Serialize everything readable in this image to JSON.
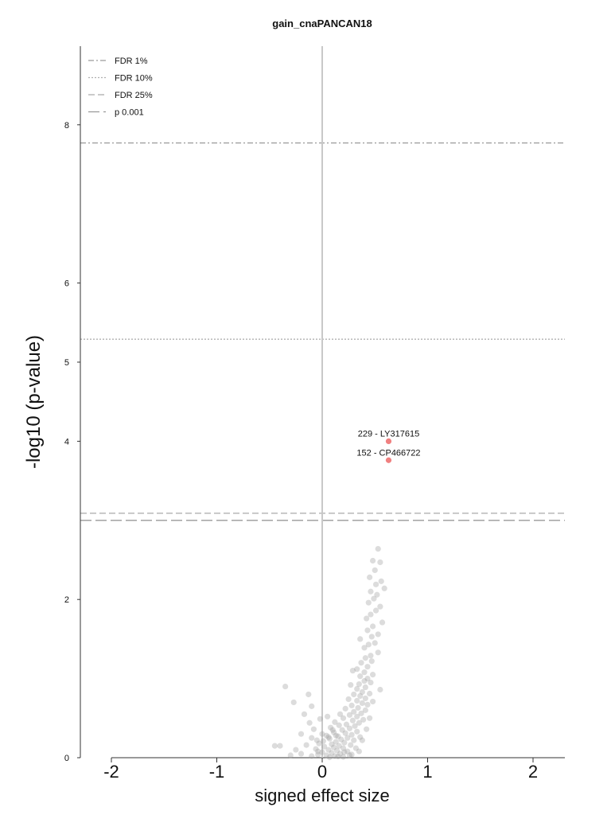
{
  "chart_data": {
    "type": "scatter",
    "title": "gain_cnaPANCAN18",
    "xlabel": "signed effect size",
    "ylabel": "-log10 (p-value)",
    "xlim": [
      -2.3,
      2.3
    ],
    "ylim": [
      0,
      9
    ],
    "x_ticks": [
      -2,
      -1,
      0,
      1,
      2
    ],
    "x_tick_labels": [
      "-2",
      "-1",
      "0",
      "1",
      "2"
    ],
    "y_ticks": [
      0,
      2,
      4,
      5,
      6,
      8
    ],
    "y_tick_labels": [
      "0",
      "2",
      "4",
      "5",
      "6",
      "8"
    ],
    "grid": false,
    "legend_position": "top-left",
    "thresholds": [
      {
        "label": "FDR 1%",
        "y": 7.77,
        "style": "dashdot"
      },
      {
        "label": "FDR 10%",
        "y": 5.29,
        "style": "dotted"
      },
      {
        "label": "FDR 25%",
        "y": 3.09,
        "style": "dashed"
      },
      {
        "label": "p 0.001",
        "y": 3.0,
        "style": "longdash"
      }
    ],
    "highlighted": [
      {
        "label": "229 - LY317615",
        "x": 0.63,
        "y": 4.0,
        "color": "#f08080"
      },
      {
        "label": "152 - CP466722",
        "x": 0.63,
        "y": 3.76,
        "color": "#f08080"
      }
    ],
    "point_color": "#9a9a9a",
    "points": [
      [
        0.53,
        2.64
      ],
      [
        0.48,
        2.49
      ],
      [
        0.55,
        2.47
      ],
      [
        0.5,
        2.37
      ],
      [
        0.45,
        2.28
      ],
      [
        0.56,
        2.23
      ],
      [
        0.51,
        2.19
      ],
      [
        0.59,
        2.14
      ],
      [
        0.46,
        2.1
      ],
      [
        0.52,
        2.06
      ],
      [
        0.49,
        2.01
      ],
      [
        0.44,
        1.96
      ],
      [
        0.55,
        1.91
      ],
      [
        0.51,
        1.86
      ],
      [
        0.46,
        1.81
      ],
      [
        0.42,
        1.76
      ],
      [
        0.57,
        1.71
      ],
      [
        0.48,
        1.66
      ],
      [
        0.43,
        1.61
      ],
      [
        0.53,
        1.56
      ],
      [
        0.47,
        1.53
      ],
      [
        0.36,
        1.5
      ],
      [
        0.5,
        1.45
      ],
      [
        0.44,
        1.43
      ],
      [
        0.4,
        1.39
      ],
      [
        0.53,
        1.33
      ],
      [
        0.46,
        1.29
      ],
      [
        0.41,
        1.26
      ],
      [
        0.47,
        1.22
      ],
      [
        0.37,
        1.2
      ],
      [
        0.43,
        1.15
      ],
      [
        0.33,
        1.12
      ],
      [
        0.29,
        1.1
      ],
      [
        0.4,
        1.08
      ],
      [
        0.48,
        1.05
      ],
      [
        0.36,
        1.03
      ],
      [
        0.43,
        1.0
      ],
      [
        0.4,
        0.97
      ],
      [
        0.46,
        0.95
      ],
      [
        0.35,
        0.93
      ],
      [
        0.27,
        0.92
      ],
      [
        0.41,
        0.89
      ],
      [
        0.33,
        0.87
      ],
      [
        0.55,
        0.86
      ],
      [
        0.38,
        0.83
      ],
      [
        0.45,
        0.81
      ],
      [
        0.3,
        0.8
      ],
      [
        0.36,
        0.78
      ],
      [
        0.41,
        0.75
      ],
      [
        0.25,
        0.74
      ],
      [
        0.33,
        0.72
      ],
      [
        0.48,
        0.71
      ],
      [
        0.38,
        0.69
      ],
      [
        0.43,
        0.67
      ],
      [
        0.28,
        0.66
      ],
      [
        0.34,
        0.63
      ],
      [
        0.22,
        0.62
      ],
      [
        0.41,
        0.6
      ],
      [
        0.3,
        0.58
      ],
      [
        0.37,
        0.56
      ],
      [
        0.17,
        0.55
      ],
      [
        0.26,
        0.54
      ],
      [
        0.33,
        0.52
      ],
      [
        0.45,
        0.5
      ],
      [
        0.2,
        0.5
      ],
      [
        0.39,
        0.48
      ],
      [
        0.29,
        0.47
      ],
      [
        0.12,
        0.45
      ],
      [
        0.35,
        0.44
      ],
      [
        0.23,
        0.42
      ],
      [
        0.16,
        0.41
      ],
      [
        0.31,
        0.4
      ],
      [
        0.08,
        0.38
      ],
      [
        0.26,
        0.37
      ],
      [
        0.42,
        0.36
      ],
      [
        0.19,
        0.35
      ],
      [
        0.33,
        0.33
      ],
      [
        0.11,
        0.32
      ],
      [
        0.22,
        0.31
      ],
      [
        0.28,
        0.29
      ],
      [
        0.04,
        0.28
      ],
      [
        0.15,
        0.27
      ],
      [
        0.36,
        0.26
      ],
      [
        0.24,
        0.25
      ],
      [
        0.07,
        0.24
      ],
      [
        0.18,
        0.23
      ],
      [
        0.3,
        0.22
      ],
      [
        0.01,
        0.21
      ],
      [
        0.13,
        0.2
      ],
      [
        0.21,
        0.19
      ],
      [
        -0.03,
        0.18
      ],
      [
        0.09,
        0.17
      ],
      [
        0.27,
        0.16
      ],
      [
        0.16,
        0.15
      ],
      [
        0.02,
        0.14
      ],
      [
        0.11,
        0.13
      ],
      [
        0.2,
        0.12
      ],
      [
        -0.06,
        0.11
      ],
      [
        0.06,
        0.1
      ],
      [
        0.14,
        0.09
      ],
      [
        0.24,
        0.08
      ],
      [
        0.0,
        0.07
      ],
      [
        0.09,
        0.06
      ],
      [
        0.17,
        0.05
      ],
      [
        -0.04,
        0.04
      ],
      [
        0.04,
        0.03
      ],
      [
        0.12,
        0.02
      ],
      [
        0.2,
        0.01
      ],
      [
        0.07,
        0.005
      ],
      [
        0.15,
        0.015
      ],
      [
        -0.1,
        0.25
      ],
      [
        -0.08,
        0.36
      ],
      [
        -0.12,
        0.44
      ],
      [
        -0.02,
        0.49
      ],
      [
        0.05,
        0.52
      ],
      [
        -0.15,
        0.16
      ],
      [
        -0.25,
        0.1
      ],
      [
        -0.2,
        0.05
      ],
      [
        -0.1,
        0.02
      ],
      [
        -0.04,
        0.08
      ],
      [
        -0.35,
        0.9
      ],
      [
        -0.13,
        0.8
      ],
      [
        -0.27,
        0.7
      ],
      [
        -0.1,
        0.65
      ],
      [
        -0.17,
        0.55
      ],
      [
        -0.2,
        0.3
      ],
      [
        -0.45,
        0.15
      ],
      [
        -0.4,
        0.15
      ],
      [
        -0.3,
        0.03
      ],
      [
        0.28,
        0.04
      ],
      [
        0.32,
        0.12
      ],
      [
        0.38,
        0.22
      ],
      [
        0.26,
        0.03
      ],
      [
        0.35,
        0.08
      ],
      [
        0.1,
        0.35
      ],
      [
        0.06,
        0.26
      ],
      [
        0.0,
        0.3
      ],
      [
        -0.05,
        0.22
      ],
      [
        0.13,
        0.28
      ],
      [
        0.21,
        0.07
      ]
    ]
  }
}
